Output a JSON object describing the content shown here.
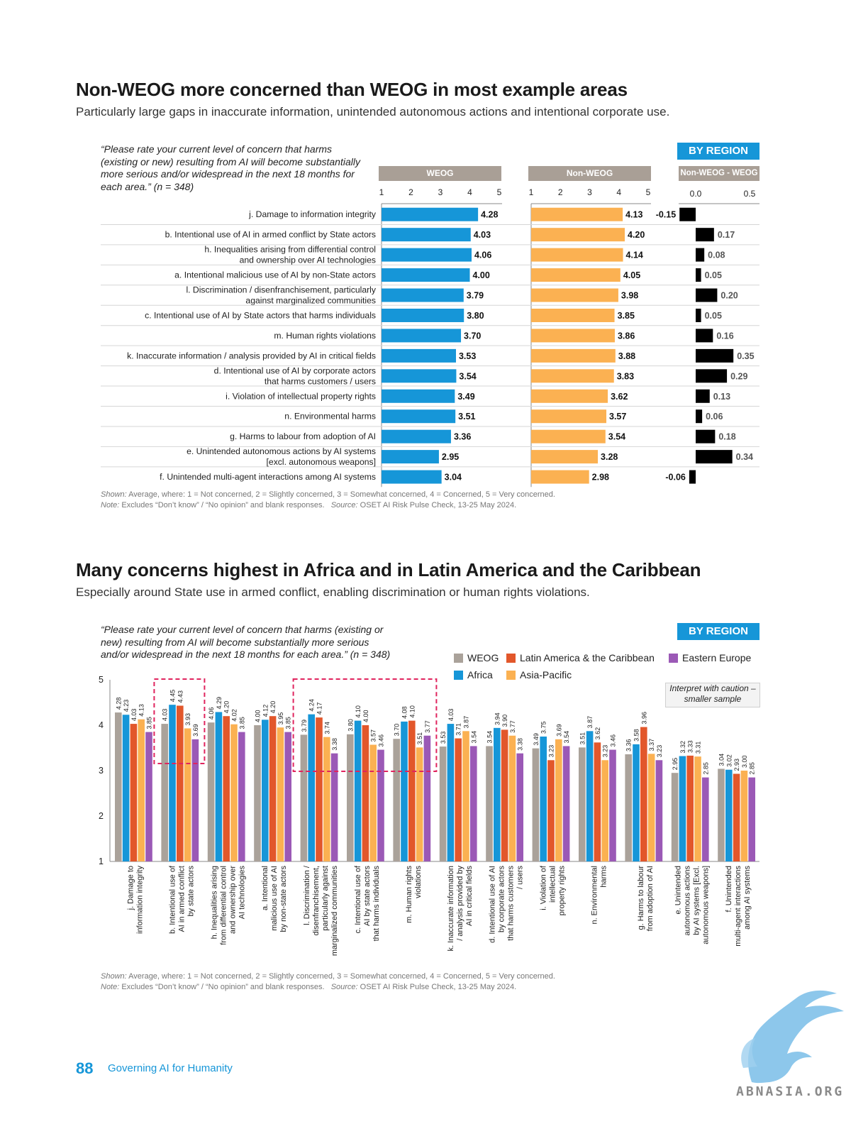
{
  "section1": {
    "title": "Non-WEOG more concerned than WEOG in most example areas",
    "subtitle": "Particularly large gaps in inaccurate information, unintended autonomous actions and intentional corporate use.",
    "question": "“Please rate your current level of concern that harms (existing or new) resulting from AI will become substantially more serious and/or widespread in the next 18 months for each area.” (n = 348)",
    "badge": "BY REGION",
    "panels": [
      "WEOG",
      "Non-WEOG",
      "Non-WEOG - WEOG"
    ],
    "notes_shown_label": "Shown:",
    "notes_shown": "Average, where: 1 = Not concerned, 2 = Slightly concerned, 3 = Somewhat concerned, 4 = Concerned, 5 = Very concerned.",
    "notes_note_label": "Note:",
    "notes_note": "Excludes “Don’t know” / “No opinion” and blank responses.",
    "notes_source_label": "Source:",
    "notes_source": "OSET AI Risk Pulse Check, 13-25 May 2024."
  },
  "section2": {
    "title": "Many concerns highest in Africa and in Latin America and the Caribbean",
    "subtitle": "Especially around State use in armed conflict, enabling discrimination or human rights violations.",
    "question": "“Please rate your current level of concern that harms (existing or new) resulting from AI will become substantially more serious and/or widespread in the next 18 months for each area.” (n = 348)",
    "badge": "BY REGION",
    "caution": "Interpret with caution – smaller sample",
    "notes_shown_label": "Shown:",
    "notes_shown": "Average, where: 1 = Not concerned, 2 = Slightly concerned, 3 = Somewhat concerned, 4 = Concerned, 5 = Very concerned.",
    "notes_note_label": "Note:",
    "notes_note": "Excludes “Don’t know” / “No opinion” and blank responses.",
    "notes_source_label": "Source:",
    "notes_source": "OSET AI Risk Pulse Check, 13-25 May 2024."
  },
  "footer": {
    "page_number": "88",
    "text": "Governing AI for Humanity",
    "watermark": "ABNASIA.ORG"
  },
  "colors": {
    "weog_bar": "#1696d8",
    "nonweog_bar": "#fbb152",
    "diff_bar": "#000000",
    "header": "#a99f96",
    "grouped": {
      "WEOG": "#aaa29a",
      "Africa": "#1696d8",
      "Latin America & the Caribbean": "#e2572b",
      "Asia-Pacific": "#fbb152",
      "Eastern Europe": "#9b59b6"
    },
    "highlight_box": "#e0245e"
  },
  "chart_data": [
    {
      "type": "bar",
      "orientation": "horizontal",
      "panels": [
        "WEOG",
        "Non-WEOG",
        "Non-WEOG - WEOG"
      ],
      "categories": [
        "j. Damage to information integrity",
        "b. Intentional use of AI in armed conflict by State actors",
        "h. Inequalities arising from differential control\nand ownership over AI technologies",
        "a. Intentional malicious use of AI by non-State actors",
        "l. Discrimination / disenfranchisement, particularly\nagainst marginalized communities",
        "c. Intentional use of AI by State actors that harms individuals",
        "m. Human rights violations",
        "k. Inaccurate information / analysis provided by AI in critical fields",
        "d. Intentional use of AI by corporate actors\nthat harms customers / users",
        "i. Violation of intellectual property rights",
        "n. Environmental harms",
        "g. Harms to labour from adoption of AI",
        "e. Unintended autonomous actions by AI systems\n[excl. autonomous weapons]",
        "f. Unintended multi-agent interactions among AI systems"
      ],
      "series": [
        {
          "name": "WEOG",
          "values": [
            "4.28",
            "4.03",
            "4.06",
            "4.00",
            "3.79",
            "3.80",
            "3.70",
            "3.53",
            "3.54",
            "3.49",
            "3.51",
            "3.36",
            "2.95",
            "3.04"
          ]
        },
        {
          "name": "Non-WEOG",
          "values": [
            "4.13",
            "4.20",
            "4.14",
            "4.05",
            "3.98",
            "3.85",
            "3.86",
            "3.88",
            "3.83",
            "3.62",
            "3.57",
            "3.54",
            "3.28",
            "2.98"
          ]
        },
        {
          "name": "Non-WEOG - WEOG",
          "values": [
            "-0.15",
            "0.17",
            "0.08",
            "0.05",
            "0.20",
            "0.05",
            "0.16",
            "0.35",
            "0.29",
            "0.13",
            "0.06",
            "0.18",
            "0.34",
            "-0.06"
          ]
        }
      ],
      "xlim": [
        1,
        5
      ],
      "xticks": [
        "1",
        "2",
        "3",
        "4",
        "5"
      ],
      "diff_xticks": [
        "0.0",
        "0.5"
      ]
    },
    {
      "type": "bar",
      "orientation": "vertical",
      "ylim": [
        1,
        5
      ],
      "yticks": [
        "1",
        "2",
        "3",
        "4",
        "5"
      ],
      "legend": [
        "WEOG",
        "Latin America & the Caribbean",
        "Eastern Europe",
        "Africa",
        "Asia-Pacific"
      ],
      "categories": [
        [
          "j. Damage to",
          "information integrity"
        ],
        [
          "b. Intentional use of",
          "AI in armed conflict",
          "by state actors"
        ],
        [
          "h. Inequalities arising",
          "from differential control",
          "and ownership over",
          "AI technologies"
        ],
        [
          "a. Intentional",
          "malicious use of AI",
          "by non-state actors"
        ],
        [
          "l. Discrimination /",
          "disenfranchisement,",
          "particularly against",
          "marginalized communities"
        ],
        [
          "c. Intentional use of",
          "AI by state actors",
          "that harms individuals"
        ],
        [
          "m. Human rights",
          "violations"
        ],
        [
          "k. Inaccurate information",
          "/ analysis provided by",
          "AI in critical fields"
        ],
        [
          "d. Intentional use of AI",
          "by corporate actors",
          "that harms customers",
          "/ users"
        ],
        [
          "i. Violation of",
          "intellectual",
          "property rights"
        ],
        [
          "n. Environmental",
          "harms"
        ],
        [
          "g. Harms to labour",
          "from adoption of AI"
        ],
        [
          "e. Unintended",
          "autonomous actions",
          "by AI systems [Excl.",
          "autonomous weapons]"
        ],
        [
          "f. Unintended",
          "multi-agent interactions",
          "among AI systems"
        ]
      ],
      "series": [
        {
          "name": "WEOG",
          "values": [
            "4.28",
            "4.03",
            "4.06",
            "4.00",
            "3.79",
            "3.80",
            "3.70",
            "3.53",
            "3.54",
            "3.49",
            "3.51",
            "3.36",
            "2.95",
            "3.04"
          ]
        },
        {
          "name": "Africa",
          "values": [
            "4.23",
            "4.45",
            "4.29",
            "4.12",
            "4.24",
            "4.10",
            "4.08",
            "4.03",
            "3.94",
            "3.75",
            "3.87",
            "3.58",
            "3.32",
            "3.02"
          ]
        },
        {
          "name": "Latin America & the Caribbean",
          "values": [
            "4.03",
            "4.43",
            "4.20",
            "4.20",
            "4.17",
            "4.00",
            "4.10",
            "3.71",
            "3.90",
            "3.23",
            "3.62",
            "3.96",
            "3.33",
            "2.93"
          ]
        },
        {
          "name": "Asia-Pacific",
          "values": [
            "4.13",
            "3.93",
            "4.02",
            "3.95",
            "3.74",
            "3.57",
            "3.51",
            "3.87",
            "3.77",
            "3.69",
            "3.23",
            "3.37",
            "3.31",
            "3.00"
          ]
        },
        {
          "name": "Eastern Europe",
          "values": [
            "3.85",
            "3.69",
            "3.85",
            "3.85",
            "3.38",
            "3.46",
            "3.77",
            "3.54",
            "3.38",
            "3.54",
            "3.46",
            "3.23",
            "2.85",
            "2.85"
          ]
        }
      ],
      "highlight_groups": [
        [
          1
        ],
        [
          4,
          5,
          6
        ]
      ]
    }
  ]
}
